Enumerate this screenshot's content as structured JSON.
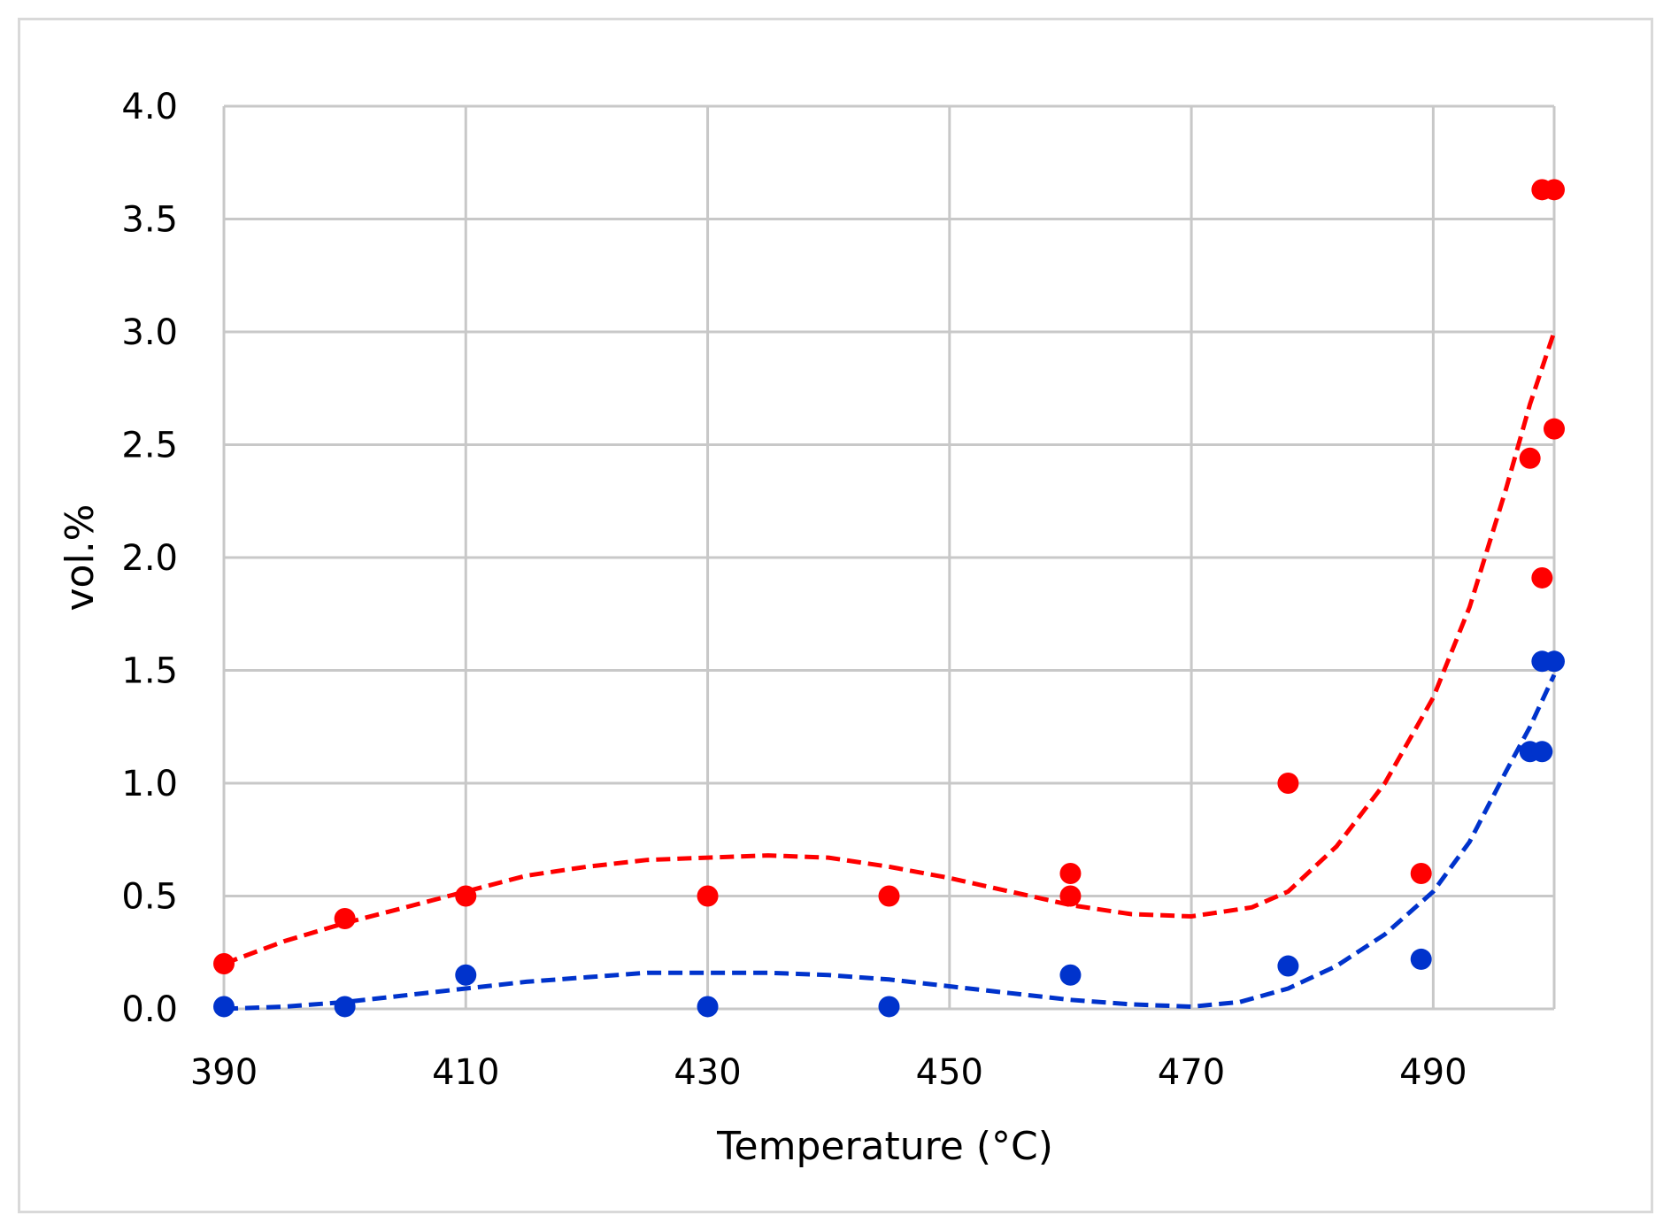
{
  "chart_data": {
    "type": "scatter",
    "xlabel": "Temperature (°C)",
    "ylabel": "vol.%",
    "xlim": [
      390,
      500
    ],
    "ylim": [
      0.0,
      4.0
    ],
    "x_ticks": [
      390,
      410,
      430,
      450,
      470,
      490
    ],
    "y_ticks": [
      "0.0",
      "0.5",
      "1.0",
      "1.5",
      "2.0",
      "2.5",
      "3.0",
      "3.5",
      "4.0"
    ],
    "x_gridlines": [
      390,
      410,
      430,
      450,
      470,
      490,
      500
    ],
    "grid": true,
    "legend": "none",
    "series": [
      {
        "color": "#ff0000",
        "points": [
          [
            390,
            0.2
          ],
          [
            400,
            0.4
          ],
          [
            410,
            0.5
          ],
          [
            430,
            0.5
          ],
          [
            445,
            0.5
          ],
          [
            460,
            0.6
          ],
          [
            460,
            0.5
          ],
          [
            478,
            1.0
          ],
          [
            489,
            0.6
          ],
          [
            498,
            2.44
          ],
          [
            499,
            1.91
          ],
          [
            499,
            3.63
          ],
          [
            500,
            3.63
          ],
          [
            500,
            2.57
          ]
        ],
        "trendline": [
          [
            390,
            0.2
          ],
          [
            395,
            0.3
          ],
          [
            400,
            0.38
          ],
          [
            405,
            0.45
          ],
          [
            410,
            0.52
          ],
          [
            415,
            0.59
          ],
          [
            420,
            0.63
          ],
          [
            425,
            0.66
          ],
          [
            430,
            0.67
          ],
          [
            435,
            0.68
          ],
          [
            440,
            0.67
          ],
          [
            445,
            0.63
          ],
          [
            450,
            0.58
          ],
          [
            455,
            0.52
          ],
          [
            460,
            0.46
          ],
          [
            465,
            0.42
          ],
          [
            470,
            0.41
          ],
          [
            475,
            0.45
          ],
          [
            478,
            0.52
          ],
          [
            482,
            0.72
          ],
          [
            486,
            1.0
          ],
          [
            490,
            1.38
          ],
          [
            493,
            1.78
          ],
          [
            496,
            2.3
          ],
          [
            498,
            2.68
          ],
          [
            500,
            3.0
          ]
        ]
      },
      {
        "color": "#0033cc",
        "points": [
          [
            390,
            0.01
          ],
          [
            400,
            0.01
          ],
          [
            410,
            0.15
          ],
          [
            430,
            0.01
          ],
          [
            445,
            0.01
          ],
          [
            460,
            0.15
          ],
          [
            478,
            0.19
          ],
          [
            489,
            0.22
          ],
          [
            498,
            1.14
          ],
          [
            499,
            1.14
          ],
          [
            499,
            1.54
          ],
          [
            500,
            1.54
          ]
        ],
        "trendline": [
          [
            390,
            0.0
          ],
          [
            395,
            0.01
          ],
          [
            400,
            0.03
          ],
          [
            405,
            0.06
          ],
          [
            410,
            0.09
          ],
          [
            415,
            0.12
          ],
          [
            420,
            0.14
          ],
          [
            425,
            0.16
          ],
          [
            430,
            0.16
          ],
          [
            435,
            0.16
          ],
          [
            440,
            0.15
          ],
          [
            445,
            0.13
          ],
          [
            450,
            0.1
          ],
          [
            455,
            0.07
          ],
          [
            460,
            0.04
          ],
          [
            465,
            0.02
          ],
          [
            470,
            0.01
          ],
          [
            474,
            0.03
          ],
          [
            478,
            0.09
          ],
          [
            482,
            0.19
          ],
          [
            486,
            0.33
          ],
          [
            490,
            0.52
          ],
          [
            493,
            0.74
          ],
          [
            496,
            1.05
          ],
          [
            498,
            1.25
          ],
          [
            500,
            1.48
          ]
        ]
      }
    ]
  }
}
